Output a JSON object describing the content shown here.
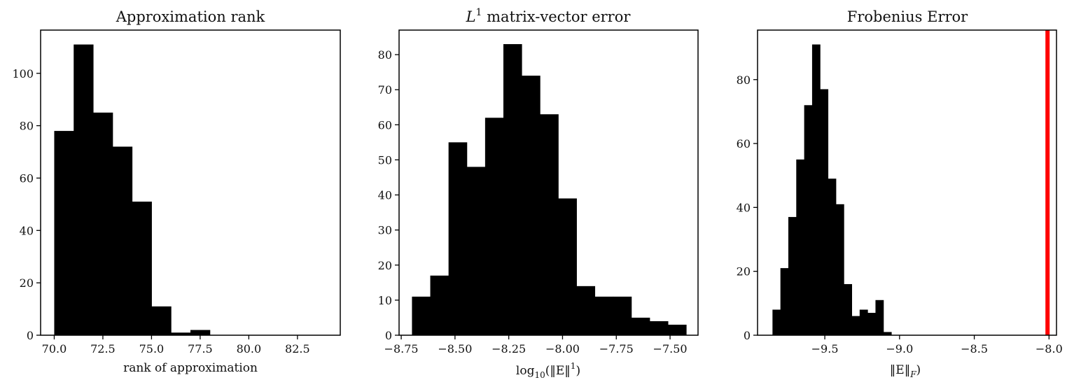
{
  "chart_data": [
    {
      "type": "bar",
      "title": "Approximation rank",
      "xlabel": "rank of approximation",
      "ylabel": "",
      "xlim": [
        69.3,
        84.7
      ],
      "ylim": [
        0,
        116.5
      ],
      "x_ticks": [
        70.0,
        72.5,
        75.0,
        77.5,
        80.0,
        82.5
      ],
      "x_tick_labels": [
        "70.0",
        "72.5",
        "75.0",
        "77.5",
        "80.0",
        "82.5"
      ],
      "y_ticks": [
        0,
        20,
        40,
        60,
        80,
        100
      ],
      "y_tick_labels": [
        "0",
        "20",
        "40",
        "60",
        "80",
        "100"
      ],
      "bins": [
        [
          70.0,
          71.0
        ],
        [
          71.0,
          72.0
        ],
        [
          72.0,
          73.0
        ],
        [
          73.0,
          74.0
        ],
        [
          74.0,
          75.0
        ],
        [
          75.0,
          76.0
        ],
        [
          76.0,
          77.0
        ],
        [
          77.0,
          78.0
        ],
        [
          78.0,
          79.0
        ],
        [
          79.0,
          80.0
        ],
        [
          80.0,
          81.0
        ],
        [
          81.0,
          82.0
        ],
        [
          82.0,
          83.0
        ],
        [
          83.0,
          84.0
        ]
      ],
      "values": [
        78,
        111,
        85,
        72,
        51,
        11,
        1,
        2,
        0,
        0,
        0,
        0,
        0,
        0
      ],
      "bar_color": "#000000"
    },
    {
      "type": "bar",
      "title_parts": [
        "L",
        "1",
        " matrix-vector error"
      ],
      "xlabel_parts": [
        "log",
        "10",
        "(‖E‖",
        "1",
        ")"
      ],
      "ylabel": "",
      "xlim": [
        -8.76,
        -7.37
      ],
      "ylim": [
        0,
        87
      ],
      "x_ticks": [
        -8.75,
        -8.5,
        -8.25,
        -8.0,
        -7.75,
        -7.5
      ],
      "x_tick_labels": [
        "−8.75",
        "−8.50",
        "−8.25",
        "−8.00",
        "−7.75",
        "−7.50"
      ],
      "y_ticks": [
        0,
        10,
        20,
        30,
        40,
        50,
        60,
        70,
        80
      ],
      "y_tick_labels": [
        "0",
        "10",
        "20",
        "30",
        "40",
        "50",
        "60",
        "70",
        "80"
      ],
      "bins": [
        [
          -8.7,
          -8.615
        ],
        [
          -8.615,
          -8.53
        ],
        [
          -8.53,
          -8.445
        ],
        [
          -8.445,
          -8.36
        ],
        [
          -8.36,
          -8.275
        ],
        [
          -8.275,
          -8.19
        ],
        [
          -8.19,
          -8.105
        ],
        [
          -8.105,
          -8.02
        ],
        [
          -8.02,
          -7.935
        ],
        [
          -7.935,
          -7.85
        ],
        [
          -7.85,
          -7.765
        ],
        [
          -7.765,
          -7.68
        ],
        [
          -7.68,
          -7.595
        ],
        [
          -7.595,
          -7.51
        ],
        [
          -7.51,
          -7.425
        ]
      ],
      "values": [
        11,
        17,
        55,
        48,
        62,
        83,
        74,
        63,
        39,
        14,
        11,
        11,
        5,
        4,
        3
      ],
      "bar_color": "#000000"
    },
    {
      "type": "bar",
      "title": "Frobenius Error",
      "xlabel_parts": [
        "‖E‖",
        "F",
        ")"
      ],
      "ylabel": "",
      "xlim": [
        -9.95,
        -7.95
      ],
      "ylim": [
        0,
        95.5
      ],
      "x_ticks": [
        -9.5,
        -9.0,
        -8.5,
        -8.0
      ],
      "x_tick_labels": [
        "−9.5",
        "−9.0",
        "−8.5",
        "−8.0"
      ],
      "y_ticks": [
        0,
        20,
        40,
        60,
        80
      ],
      "y_tick_labels": [
        "0",
        "20",
        "40",
        "60",
        "80"
      ],
      "bins": [
        [
          -9.85,
          -9.797
        ],
        [
          -9.797,
          -9.744
        ],
        [
          -9.744,
          -9.691
        ],
        [
          -9.691,
          -9.638
        ],
        [
          -9.638,
          -9.585
        ],
        [
          -9.585,
          -9.532
        ],
        [
          -9.532,
          -9.479
        ],
        [
          -9.479,
          -9.426
        ],
        [
          -9.426,
          -9.373
        ],
        [
          -9.373,
          -9.32
        ],
        [
          -9.32,
          -9.267
        ],
        [
          -9.267,
          -9.214
        ],
        [
          -9.214,
          -9.161
        ],
        [
          -9.161,
          -9.108
        ],
        [
          -9.108,
          -9.055
        ],
        [
          -9.055,
          -9.002
        ],
        [
          -9.002,
          -8.949
        ],
        [
          -8.949,
          -8.896
        ],
        [
          -8.896,
          -8.843
        ],
        [
          -8.843,
          -8.79
        ]
      ],
      "values": [
        8,
        21,
        37,
        55,
        72,
        91,
        77,
        49,
        41,
        16,
        6,
        8,
        7,
        11,
        1,
        0,
        0,
        0,
        0,
        0
      ],
      "bar_color": "#000000",
      "threshold_line": {
        "x": -8.01,
        "color": "#ff0000"
      }
    }
  ]
}
